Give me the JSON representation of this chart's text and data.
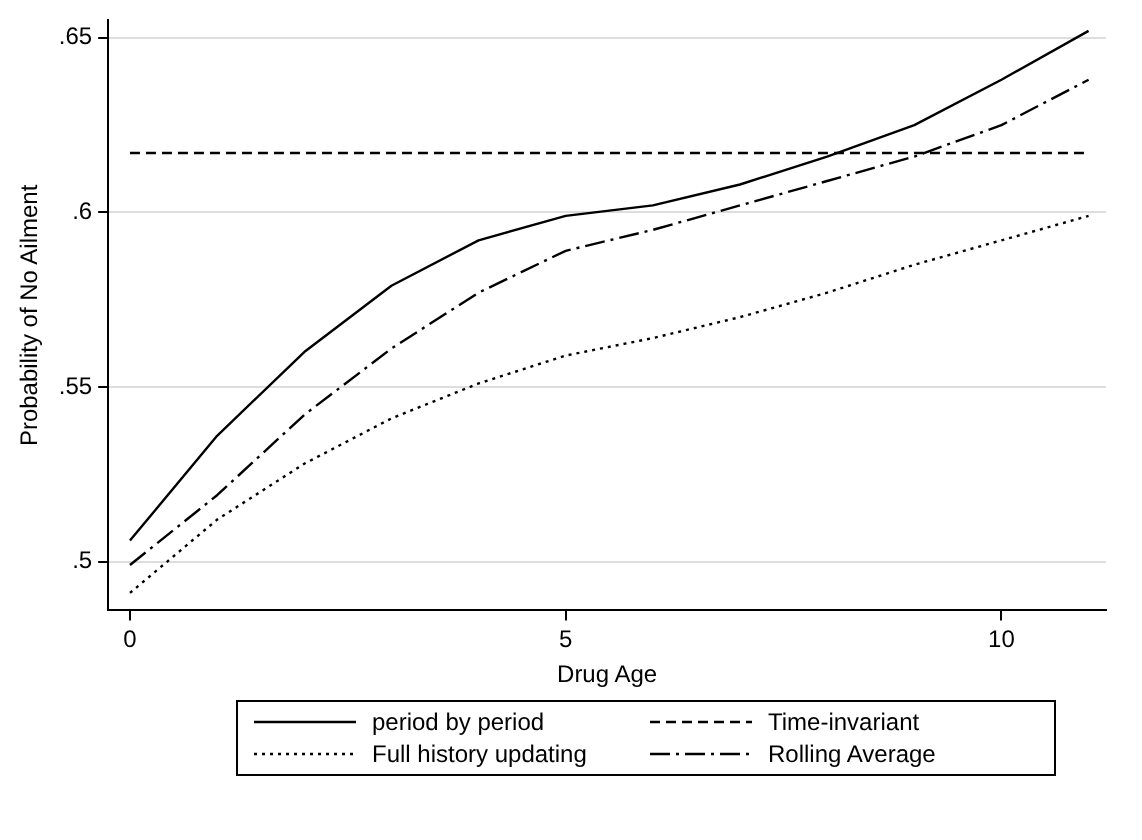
{
  "chart_data": {
    "type": "line",
    "xlabel": "Drug Age",
    "ylabel": "Probability of No Ailment",
    "x": [
      0,
      1,
      2,
      3,
      4,
      5,
      6,
      7,
      8,
      9,
      10,
      11
    ],
    "series": [
      {
        "name": "period by period",
        "color": "#000000",
        "line_style": "solid",
        "values": [
          0.506,
          0.536,
          0.56,
          0.579,
          0.592,
          0.599,
          0.602,
          0.608,
          0.616,
          0.625,
          0.638,
          0.652
        ]
      },
      {
        "name": "Time-invariant",
        "color": "#000000",
        "line_style": "dashed",
        "values": [
          0.617,
          0.617,
          0.617,
          0.617,
          0.617,
          0.617,
          0.617,
          0.617,
          0.617,
          0.617,
          0.617,
          0.617
        ]
      },
      {
        "name": "Full history updating",
        "color": "#000000",
        "line_style": "dotted",
        "values": [
          0.491,
          0.512,
          0.528,
          0.541,
          0.551,
          0.559,
          0.564,
          0.57,
          0.577,
          0.585,
          0.592,
          0.599
        ]
      },
      {
        "name": "Rolling Average",
        "color": "#000000",
        "line_style": "dashdot",
        "values": [
          0.499,
          0.519,
          0.542,
          0.561,
          0.577,
          0.589,
          0.595,
          0.602,
          0.609,
          0.616,
          0.625,
          0.638
        ]
      }
    ],
    "xlim": [
      -0.25,
      11.2
    ],
    "xticks": [
      0,
      5,
      10
    ],
    "ylim": [
      0.486,
      0.655
    ],
    "yticks": [
      {
        "value": 0.5,
        "label": ".5"
      },
      {
        "value": 0.55,
        "label": ".55"
      },
      {
        "value": 0.6,
        "label": ".6"
      },
      {
        "value": 0.65,
        "label": ".65"
      }
    ],
    "grid": "y",
    "legend": "bottom",
    "marker": "none"
  }
}
